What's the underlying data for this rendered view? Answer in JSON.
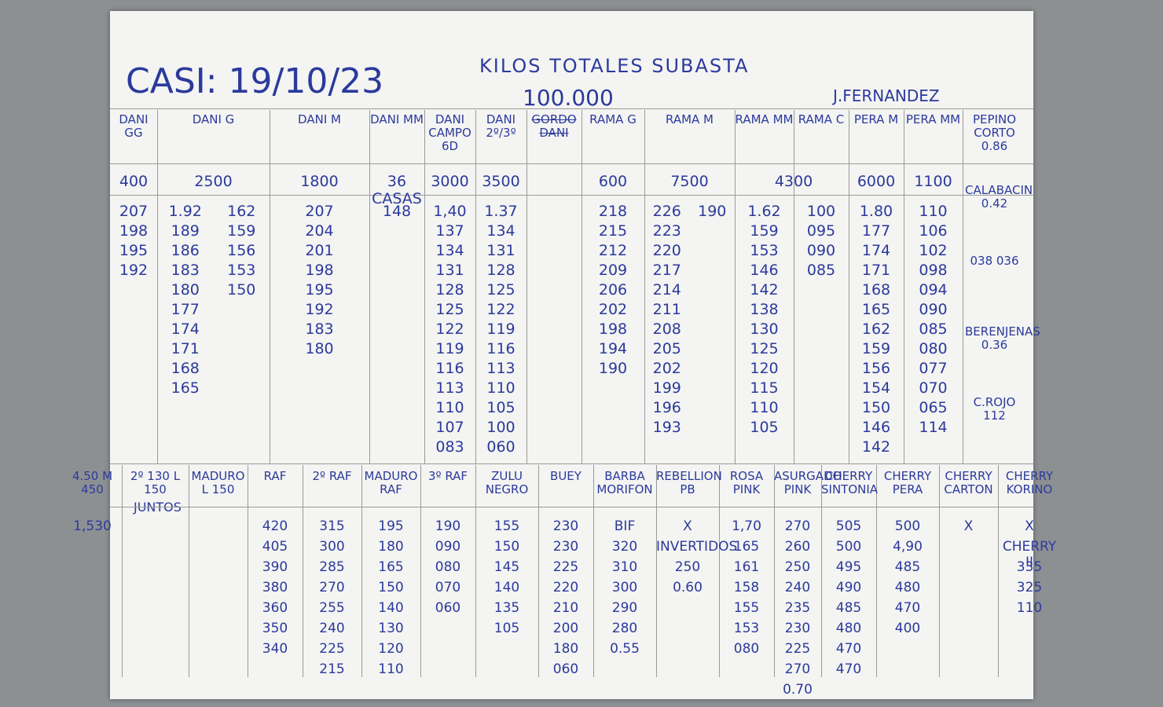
{
  "header": {
    "title": "CASI: 19/10/23",
    "subtitle": "KILOS TOTALES SUBASTA",
    "total": "100.000",
    "author": "J.FERNANDEZ"
  },
  "top": {
    "columns": [
      {
        "label": "DANI GG",
        "total": "400",
        "values": [
          "207",
          "198",
          "195",
          "192"
        ]
      },
      {
        "label": "DANI G",
        "total": "2500",
        "values": [
          "1.92",
          "189",
          "186",
          "183",
          "180",
          "177",
          "174",
          "171",
          "168",
          "165"
        ],
        "values2": [
          "162",
          "159",
          "156",
          "153",
          "150"
        ]
      },
      {
        "label": "DANI M",
        "total": "1800",
        "values": [
          "207",
          "204",
          "201",
          "198",
          "195",
          "192",
          "183",
          "180"
        ]
      },
      {
        "label": "DANI MM",
        "total": "36 CASAS",
        "values": [
          "148"
        ]
      },
      {
        "label": "DANI CAMPO 6D",
        "total": "3000",
        "values": [
          "1,40",
          "137",
          "134",
          "131",
          "128",
          "125",
          "122",
          "119",
          "116",
          "113",
          "110",
          "107",
          "083"
        ]
      },
      {
        "label": "DANI 2º/3º",
        "total": "3500",
        "values": [
          "1.37",
          "134",
          "131",
          "128",
          "125",
          "122",
          "119",
          "116",
          "113",
          "110",
          "105",
          "100",
          "060"
        ]
      },
      {
        "label": "GORDO DANI"
      },
      {
        "label": "RAMA G",
        "total": "600",
        "values": [
          "218",
          "215",
          "212",
          "209",
          "206",
          "202",
          "198",
          "194",
          "190"
        ]
      },
      {
        "label": "RAMA M",
        "total": "7500",
        "values": [
          "226",
          "223",
          "220",
          "217",
          "214",
          "211",
          "208",
          "205",
          "202",
          "199",
          "196",
          "193"
        ],
        "values2": [
          "190"
        ]
      },
      {
        "label": "RAMA MM",
        "total": "4300",
        "values": [
          "1.62",
          "159",
          "153",
          "146",
          "142",
          "138",
          "130",
          "125",
          "120",
          "115",
          "110",
          "105"
        ]
      },
      {
        "label": "RAMA C",
        "values": [
          "100",
          "095",
          "090",
          "085"
        ]
      },
      {
        "label": "PERA M",
        "total": "6000",
        "values": [
          "1.80",
          "177",
          "174",
          "171",
          "168",
          "165",
          "162",
          "159",
          "156",
          "154",
          "150",
          "146",
          "142"
        ]
      },
      {
        "label": "PERA MM",
        "total": "1100",
        "values": [
          "110",
          "106",
          "102",
          "098",
          "094",
          "090",
          "085",
          "080",
          "077",
          "070",
          "065",
          "114"
        ]
      }
    ],
    "side": [
      "PEPINO CORTO 0.86",
      "CALABACIN 0.42",
      "038 036",
      "BERENJENAS 0.36",
      "C.ROJO 112"
    ]
  },
  "bottom": {
    "note": "JUNTOS",
    "columns": [
      {
        "label": "4.50 M 450",
        "values": [
          "1,530"
        ]
      },
      {
        "label": "2º 130 L 150"
      },
      {
        "label": "MADURO L 150"
      },
      {
        "label": "RAF",
        "values": [
          "420",
          "405",
          "390",
          "380",
          "360",
          "350",
          "340"
        ]
      },
      {
        "label": "2º RAF",
        "values": [
          "315",
          "300",
          "285",
          "270",
          "255",
          "240",
          "225",
          "215"
        ]
      },
      {
        "label": "MADURO RAF",
        "values": [
          "195",
          "180",
          "165",
          "150",
          "140",
          "130",
          "120",
          "110"
        ]
      },
      {
        "label": "3º RAF",
        "values": [
          "190",
          "090",
          "080",
          "070",
          "060"
        ]
      },
      {
        "label": "ZULU NEGRO",
        "values": [
          "155",
          "150",
          "145",
          "140",
          "135",
          "105"
        ]
      },
      {
        "label": "BUEY",
        "values": [
          "230",
          "230",
          "225",
          "220",
          "210",
          "200",
          "180",
          "060"
        ]
      },
      {
        "label": "BARBA MORIFON",
        "values": [
          "BIF",
          "320",
          "310",
          "300",
          "290",
          "280",
          "0.55"
        ]
      },
      {
        "label": "REBELLION PB",
        "values": [
          "X",
          "INVERTIDOS",
          "250",
          "0.60"
        ]
      },
      {
        "label": "ROSA PINK",
        "values": [
          "1,70",
          "165",
          "161",
          "158",
          "155",
          "153",
          "080"
        ]
      },
      {
        "label": "ASURGADO PINK",
        "values": [
          "270",
          "260",
          "250",
          "240",
          "235",
          "230",
          "225",
          "270",
          "0.70"
        ]
      },
      {
        "label": "CHERRY SINTONIA",
        "values": [
          "505",
          "500",
          "495",
          "490",
          "485",
          "480",
          "470",
          "470"
        ]
      },
      {
        "label": "CHERRY PERA",
        "values": [
          "500",
          "4,90",
          "485",
          "480",
          "470",
          "400"
        ]
      },
      {
        "label": "CHERRY CARTON",
        "values": [
          "X"
        ]
      },
      {
        "label": "CHERRY KORINO",
        "values": [
          "X",
          "CHERRY II",
          "335",
          "325",
          "110"
        ]
      }
    ]
  }
}
